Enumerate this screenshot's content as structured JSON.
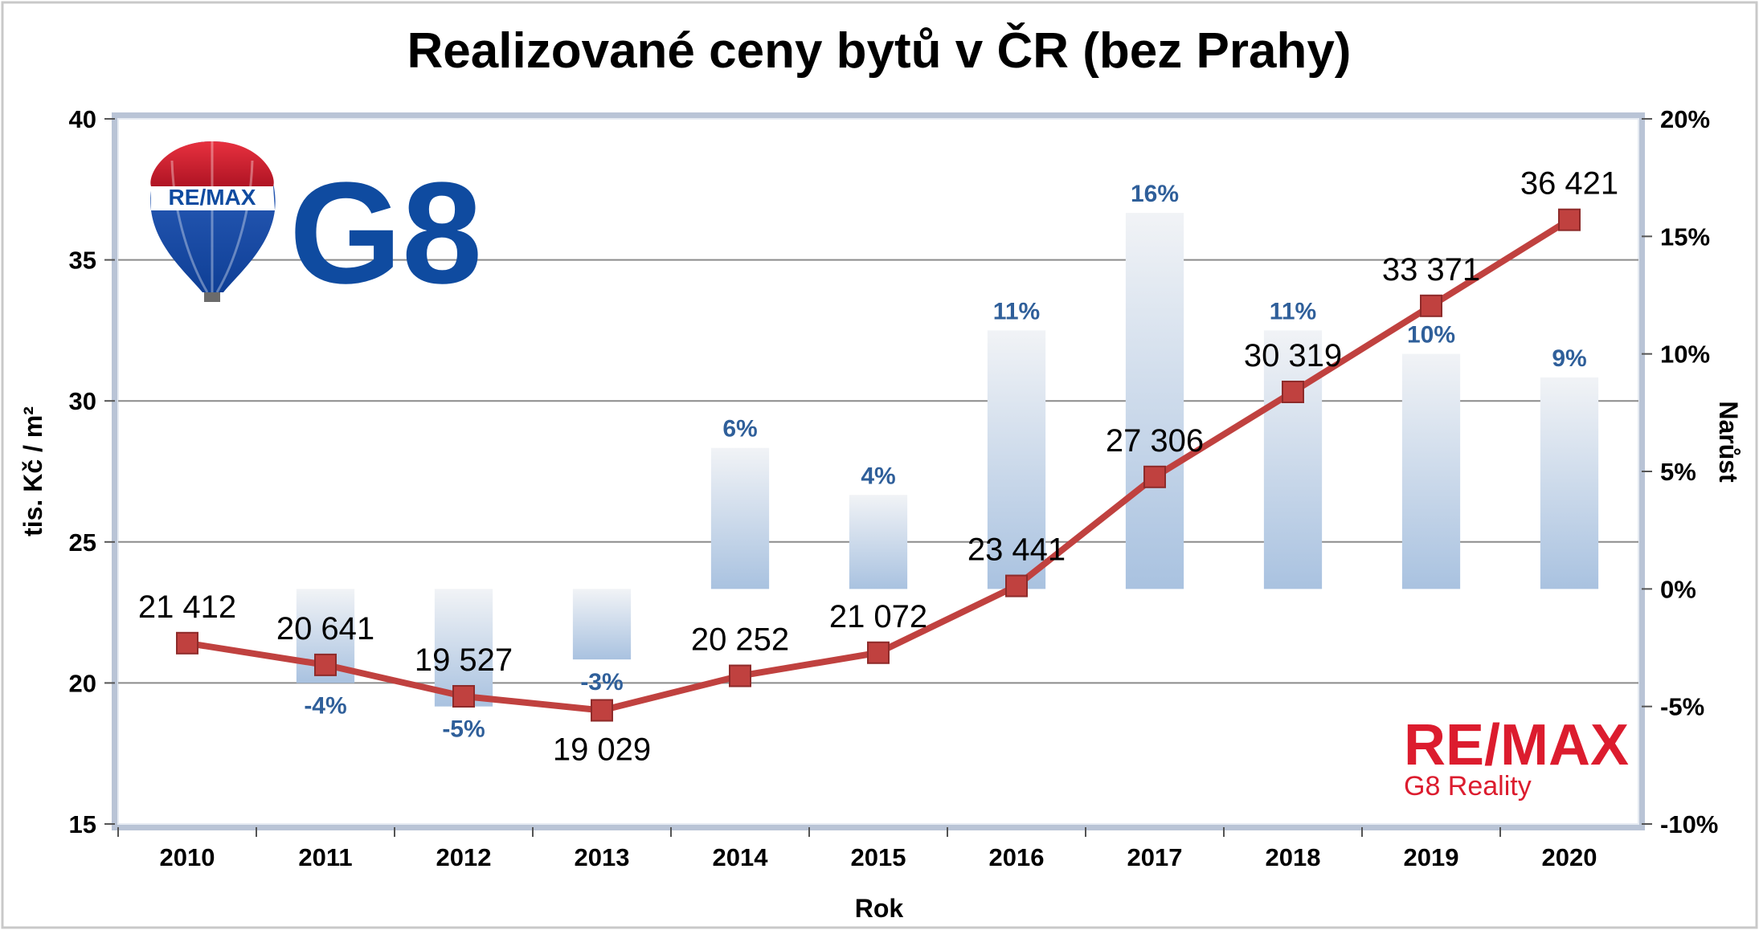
{
  "colors": {
    "line": "#c0413f",
    "marker": "#c0413f",
    "bar_top": "#f1f3f6",
    "bar_bottom": "#a9c2e0",
    "bar_label": "#2f5f9a",
    "grid": "#8c8c8c",
    "frame": "#b9c4d6",
    "brand_red": "#dc1c2e",
    "brand_blue": "#0f4ba0"
  },
  "logos": {
    "balloon_text": "RE/MAX",
    "g8_text": "G8",
    "brand_text": "RE/MAX",
    "brand_sub": "G8 Reality"
  },
  "chart_data": {
    "type": "bar+line",
    "title": "Realizované ceny bytů v ČR (bez Prahy)",
    "xlabel": "Rok",
    "ylabel": "tis. Kč / m²",
    "y2label": "Narůst",
    "categories": [
      "2010",
      "2011",
      "2012",
      "2013",
      "2014",
      "2015",
      "2016",
      "2017",
      "2018",
      "2019",
      "2020"
    ],
    "ylim": [
      15,
      40
    ],
    "yticks": [
      "15",
      "20",
      "25",
      "30",
      "35",
      "40"
    ],
    "y2lim": [
      -10,
      20
    ],
    "y2ticks": [
      "-10%",
      "-5%",
      "0%",
      "5%",
      "10%",
      "15%",
      "20%"
    ],
    "grid": true,
    "series": [
      {
        "type": "line",
        "axis": "left",
        "values": [
          21.412,
          20.641,
          19.527,
          19.029,
          20.252,
          21.072,
          23.441,
          27.306,
          30.319,
          33.371,
          36.421
        ],
        "labels": [
          "21 412",
          "20 641",
          "19 527",
          "19 029",
          "20 252",
          "21 072",
          "23 441",
          "27 306",
          "30 319",
          "33 371",
          "36 421"
        ]
      },
      {
        "type": "bar",
        "axis": "right",
        "values": [
          null,
          -4,
          -5,
          -3,
          6,
          4,
          11,
          16,
          11,
          10,
          9
        ],
        "labels": [
          "",
          "-4%",
          "-5%",
          "-3%",
          "6%",
          "4%",
          "11%",
          "16%",
          "11%",
          "10%",
          "9%"
        ]
      }
    ]
  }
}
